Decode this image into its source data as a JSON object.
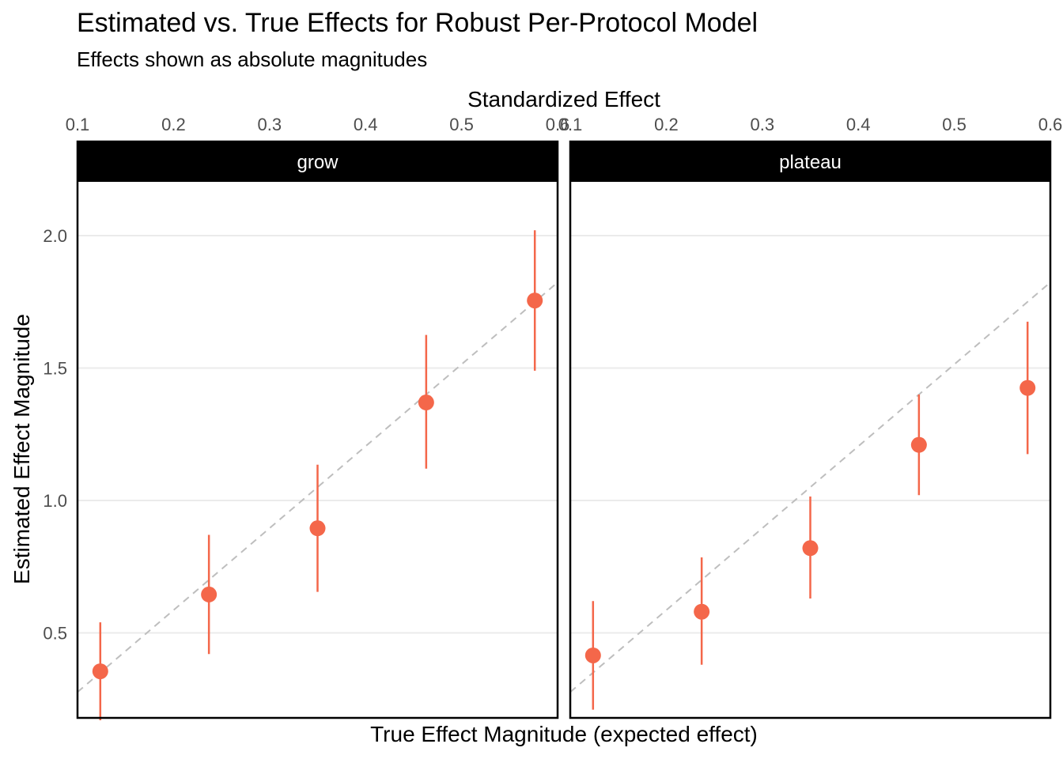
{
  "chart_data": {
    "type": "scatter",
    "title": "Estimated vs. True Effects for Robust Per-Protocol Model",
    "subtitle": "Effects shown as absolute magnitudes",
    "xlabel": "True Effect Magnitude (expected effect)",
    "ylabel": "Estimated Effect Magnitude",
    "x2label": "Standardized Effect",
    "y_ticks": [
      "0.5",
      "1.0",
      "1.5",
      "2.0"
    ],
    "x2_ticks": [
      "0.1",
      "0.2",
      "0.3",
      "0.4",
      "0.5",
      "0.6"
    ],
    "x2lim": [
      0.1,
      0.6
    ],
    "ylim": [
      0.1,
      2.2
    ],
    "xlim_true": [
      0.2766,
      1.8234
    ],
    "reference_line": "y = x (dashed)",
    "grid": "horizontal major",
    "point_color": "#f4674a",
    "panels": [
      {
        "strip": "grow",
        "points": [
          {
            "x": 0.35,
            "y": 0.355,
            "lo": 0.17,
            "hi": 0.54
          },
          {
            "x": 0.7,
            "y": 0.645,
            "lo": 0.42,
            "hi": 0.87
          },
          {
            "x": 1.05,
            "y": 0.895,
            "lo": 0.655,
            "hi": 1.135
          },
          {
            "x": 1.4,
            "y": 1.37,
            "lo": 1.12,
            "hi": 1.625
          },
          {
            "x": 1.75,
            "y": 1.755,
            "lo": 1.49,
            "hi": 2.02
          }
        ]
      },
      {
        "strip": "plateau",
        "points": [
          {
            "x": 0.35,
            "y": 0.415,
            "lo": 0.21,
            "hi": 0.62
          },
          {
            "x": 0.7,
            "y": 0.58,
            "lo": 0.38,
            "hi": 0.785
          },
          {
            "x": 1.05,
            "y": 0.82,
            "lo": 0.63,
            "hi": 1.015
          },
          {
            "x": 1.4,
            "y": 1.21,
            "lo": 1.02,
            "hi": 1.4
          },
          {
            "x": 1.75,
            "y": 1.425,
            "lo": 1.175,
            "hi": 1.675
          }
        ]
      }
    ]
  }
}
